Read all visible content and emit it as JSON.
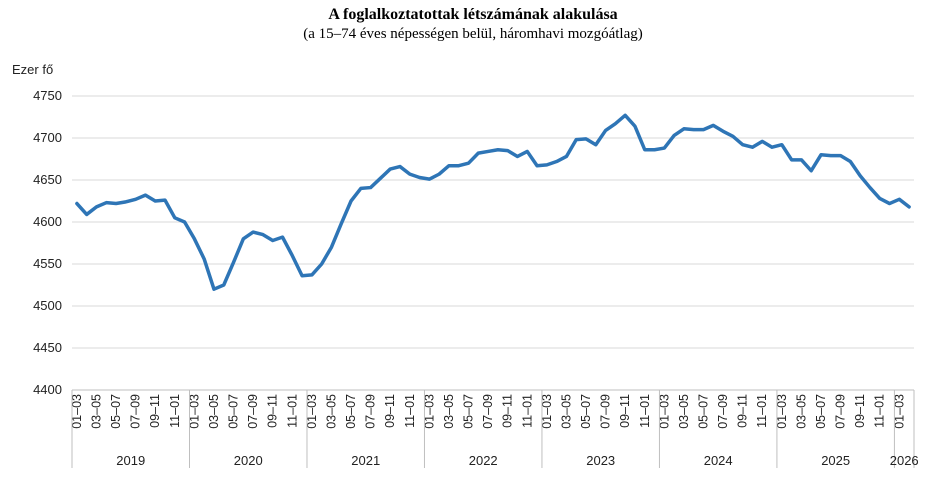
{
  "chart_data": {
    "type": "line",
    "title": "A foglalkoztatottak létszámának alakulása",
    "subtitle": "(a 15–74 éves népességen belül, háromhavi mozgóátlag)",
    "ylabel": "Ezer fő",
    "ylim": [
      4400,
      4750
    ],
    "yticks": [
      4400,
      4450,
      4500,
      4550,
      4600,
      4650,
      4700,
      4750
    ],
    "grid": true,
    "legend": "none",
    "line_color": "#2e75b6",
    "x_period_labels": [
      "01–03",
      "03–05",
      "05–07",
      "07–09",
      "09–11",
      "11–01"
    ],
    "years": [
      "2019",
      "2020",
      "2021",
      "2022",
      "2023",
      "2024",
      "2025",
      "2026"
    ],
    "series": [
      {
        "values": [
          4622,
          4609,
          4618,
          4623,
          4622,
          4624,
          4627,
          4632,
          4625,
          4626,
          4605,
          4600,
          4580,
          4556,
          4520,
          4525,
          4552,
          4580,
          4588,
          4585,
          4578,
          4582,
          4560,
          4536,
          4537,
          4550,
          4570,
          4598,
          4625,
          4640,
          4641,
          4652,
          4663,
          4666,
          4657,
          4653,
          4651,
          4657,
          4667,
          4667,
          4670,
          4682,
          4684,
          4686,
          4685,
          4678,
          4684,
          4667,
          4668,
          4672,
          4678,
          4698,
          4699,
          4692,
          4709,
          4717,
          4727,
          4714,
          4686,
          4686,
          4688,
          4703,
          4711,
          4710,
          4710,
          4715,
          4708,
          4702,
          4692,
          4689,
          4696,
          4689,
          4692,
          4674,
          4674,
          4661,
          4680,
          4679,
          4679,
          4672,
          4655,
          4641,
          4628,
          4622,
          4627,
          4618
        ]
      }
    ]
  }
}
